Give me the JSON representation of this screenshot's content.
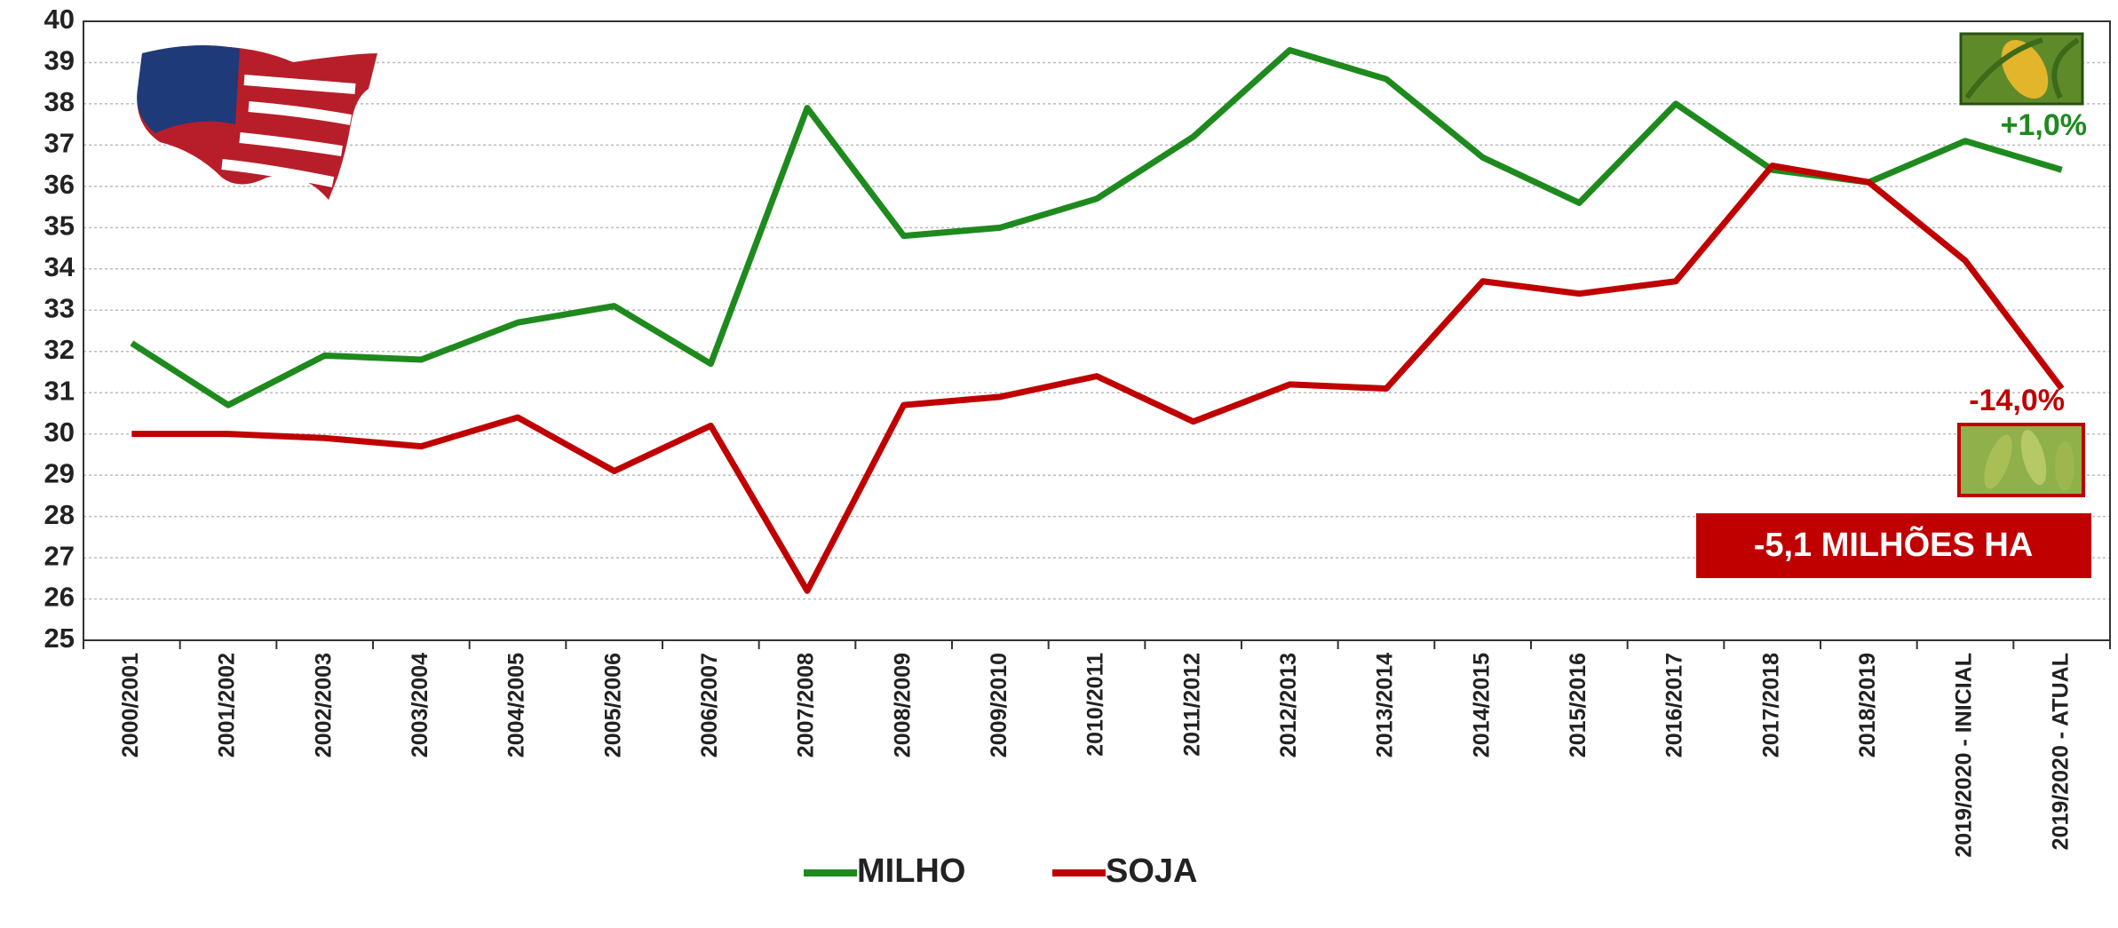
{
  "chart_data": {
    "type": "line",
    "categories": [
      "2000/2001",
      "2001/2002",
      "2002/2003",
      "2003/2004",
      "2004/2005",
      "2005/2006",
      "2006/2007",
      "2007/2008",
      "2008/2009",
      "2009/2010",
      "2010/2011",
      "2011/2012",
      "2012/2013",
      "2013/2014",
      "2014/2015",
      "2015/2016",
      "2016/2017",
      "2017/2018",
      "2018/2019",
      "2019/2020 - INICIAL",
      "2019/2020 - ATUAL"
    ],
    "series": [
      {
        "name": "MILHO",
        "color": "#1e8a1e",
        "values": [
          32.2,
          30.7,
          31.9,
          31.8,
          32.7,
          33.1,
          31.7,
          37.9,
          34.8,
          35.0,
          35.7,
          37.2,
          39.3,
          38.6,
          36.7,
          35.6,
          38.0,
          36.4,
          36.1,
          37.1,
          36.4
        ]
      },
      {
        "name": "SOJA",
        "color": "#c00000",
        "values": [
          30.0,
          30.0,
          29.9,
          29.7,
          30.4,
          29.1,
          30.2,
          26.2,
          30.7,
          30.9,
          31.4,
          30.3,
          31.2,
          31.1,
          33.7,
          33.4,
          33.7,
          36.5,
          36.1,
          34.2,
          31.1
        ]
      }
    ],
    "ylim": [
      25,
      40
    ],
    "yticks": [
      25,
      26,
      27,
      28,
      29,
      30,
      31,
      32,
      33,
      34,
      35,
      36,
      37,
      38,
      39,
      40
    ],
    "grid": true,
    "legend": "bottom",
    "annotations": [
      "+1,0%",
      "-14,0%",
      "-5,1 MILHÕES HA"
    ]
  }
}
